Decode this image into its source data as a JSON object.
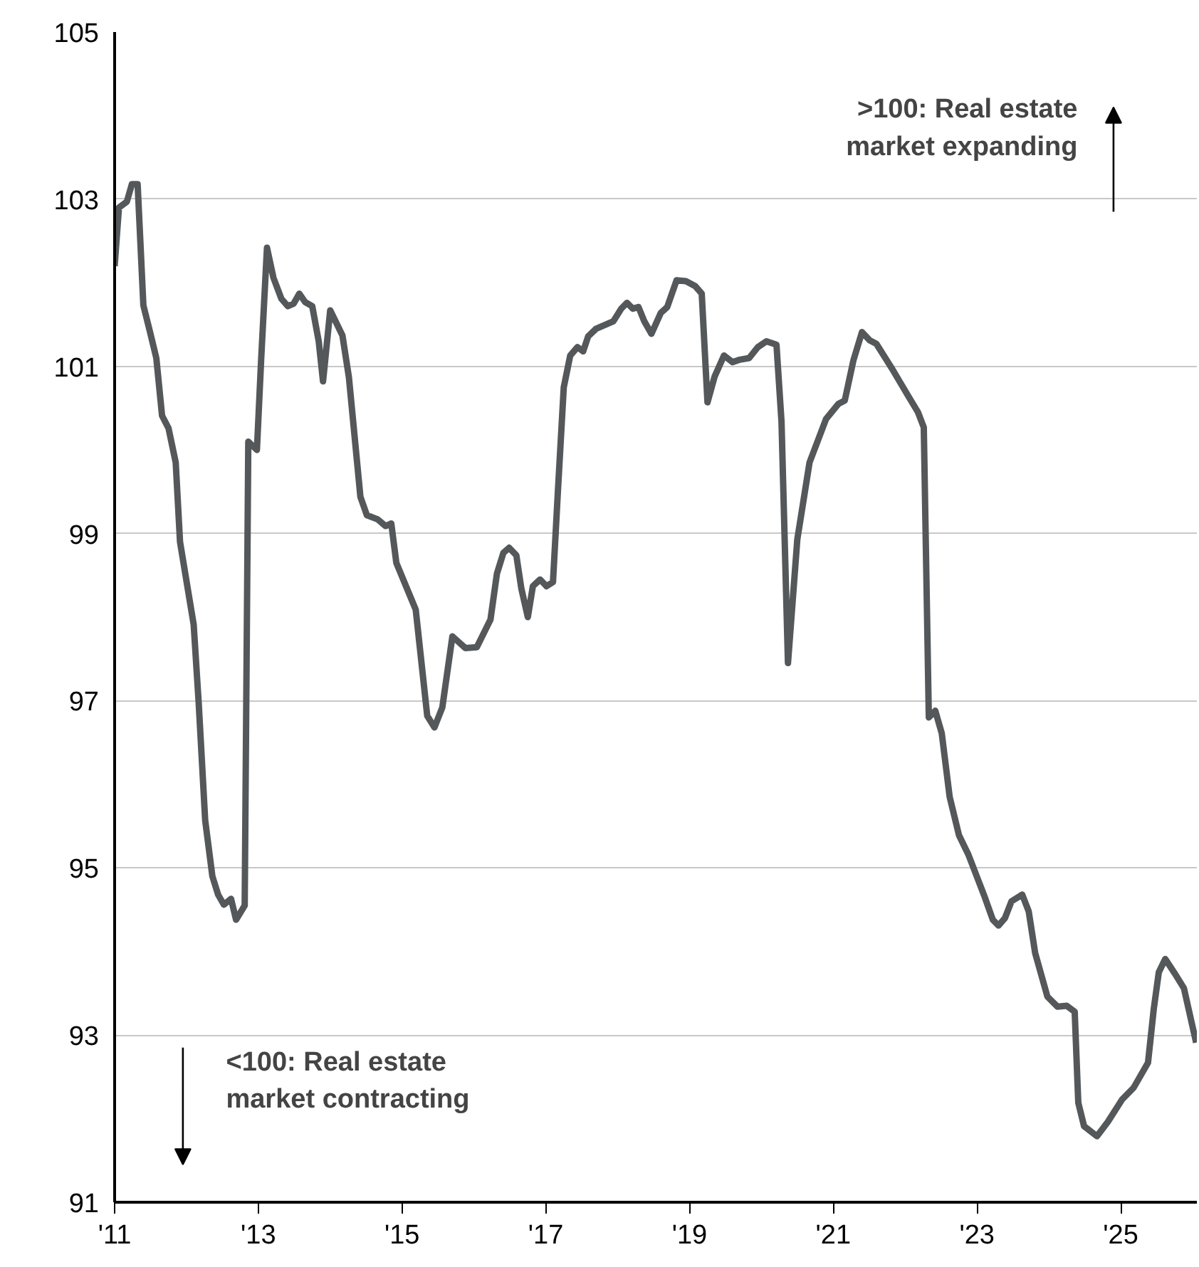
{
  "chart_data": {
    "type": "line",
    "x": [
      2011.0,
      2011.06,
      2011.17,
      2011.24,
      2011.32,
      2011.4,
      2011.49,
      2011.58,
      2011.66,
      2011.75,
      2011.85,
      2011.91,
      2012.1,
      2012.17,
      2012.26,
      2012.36,
      2012.44,
      2012.52,
      2012.62,
      2012.69,
      2012.81,
      2012.86,
      2012.98,
      2013.04,
      2013.12,
      2013.21,
      2013.32,
      2013.41,
      2013.49,
      2013.57,
      2013.65,
      2013.75,
      2013.84,
      2013.9,
      2014.0,
      2014.17,
      2014.26,
      2014.42,
      2014.51,
      2014.66,
      2014.77,
      2014.85,
      2014.92,
      2015.19,
      2015.35,
      2015.45,
      2015.56,
      2015.7,
      2015.88,
      2016.04,
      2016.23,
      2016.32,
      2016.41,
      2016.49,
      2016.59,
      2016.66,
      2016.75,
      2016.82,
      2016.92,
      2017.01,
      2017.1,
      2017.17,
      2017.25,
      2017.34,
      2017.44,
      2017.52,
      2017.59,
      2017.7,
      2017.94,
      2018.05,
      2018.13,
      2018.21,
      2018.29,
      2018.37,
      2018.47,
      2018.6,
      2018.69,
      2018.82,
      2018.95,
      2019.08,
      2019.17,
      2019.25,
      2019.35,
      2019.48,
      2019.6,
      2019.7,
      2019.83,
      2019.95,
      2020.07,
      2020.21,
      2020.28,
      2020.37,
      2020.5,
      2020.67,
      2020.9,
      2021.07,
      2021.16,
      2021.28,
      2021.4,
      2021.51,
      2021.6,
      2021.82,
      2022.04,
      2022.18,
      2022.26,
      2022.33,
      2022.42,
      2022.51,
      2022.62,
      2022.75,
      2022.88,
      2023.1,
      2023.22,
      2023.3,
      2023.39,
      2023.48,
      2023.63,
      2023.72,
      2023.81,
      2023.98,
      2024.12,
      2024.25,
      2024.36,
      2024.41,
      2024.49,
      2024.67,
      2024.82,
      2025.02,
      2025.18,
      2025.38,
      2025.46,
      2025.53,
      2025.62,
      2025.75,
      2025.88,
      2026.05
    ],
    "series": [
      {
        "color": "#54585a",
        "values": [
          102.2,
          102.9,
          102.97,
          103.18,
          103.18,
          101.73,
          101.42,
          101.1,
          100.41,
          100.26,
          99.85,
          98.9,
          97.91,
          96.97,
          95.57,
          94.9,
          94.68,
          94.56,
          94.63,
          94.38,
          94.55,
          100.1,
          100.0,
          101.1,
          102.42,
          102.06,
          101.81,
          101.72,
          101.75,
          101.87,
          101.77,
          101.72,
          101.3,
          100.82,
          101.67,
          101.37,
          100.87,
          99.44,
          99.22,
          99.17,
          99.09,
          99.12,
          98.65,
          98.09,
          96.82,
          96.68,
          96.92,
          97.77,
          97.63,
          97.64,
          97.97,
          98.52,
          98.77,
          98.83,
          98.74,
          98.34,
          98.0,
          98.37,
          98.45,
          98.37,
          98.42,
          99.53,
          100.75,
          101.13,
          101.23,
          101.18,
          101.36,
          101.45,
          101.54,
          101.69,
          101.76,
          101.69,
          101.71,
          101.54,
          101.39,
          101.64,
          101.71,
          102.03,
          102.02,
          101.96,
          101.87,
          100.57,
          100.88,
          101.13,
          101.05,
          101.08,
          101.1,
          101.23,
          101.3,
          101.26,
          100.34,
          97.45,
          98.93,
          99.85,
          100.37,
          100.55,
          100.59,
          101.07,
          101.41,
          101.31,
          101.27,
          100.97,
          100.65,
          100.45,
          100.27,
          96.8,
          96.88,
          96.61,
          95.85,
          95.39,
          95.16,
          94.67,
          94.38,
          94.31,
          94.4,
          94.6,
          94.68,
          94.48,
          93.98,
          93.46,
          93.34,
          93.35,
          93.28,
          92.19,
          91.91,
          91.79,
          91.96,
          92.23,
          92.37,
          92.67,
          93.31,
          93.75,
          93.91,
          93.74,
          93.56,
          92.91
        ]
      }
    ],
    "xlim": [
      2011,
      2026.06
    ],
    "xticks": [
      {
        "value": 2011,
        "label": "'11"
      },
      {
        "value": 2013,
        "label": "'13"
      },
      {
        "value": 2015,
        "label": "'15"
      },
      {
        "value": 2017,
        "label": "'17"
      },
      {
        "value": 2019,
        "label": "'19"
      },
      {
        "value": 2021,
        "label": "'21"
      },
      {
        "value": 2023,
        "label": "'23"
      },
      {
        "value": 2025,
        "label": "'25"
      }
    ],
    "ylim": [
      91,
      105
    ],
    "yticks": [
      91,
      93,
      95,
      97,
      99,
      101,
      103,
      105
    ],
    "grid": "y",
    "annotations": [
      ">100: Real estate market expanding",
      "<100: Real estate market contracting"
    ]
  }
}
